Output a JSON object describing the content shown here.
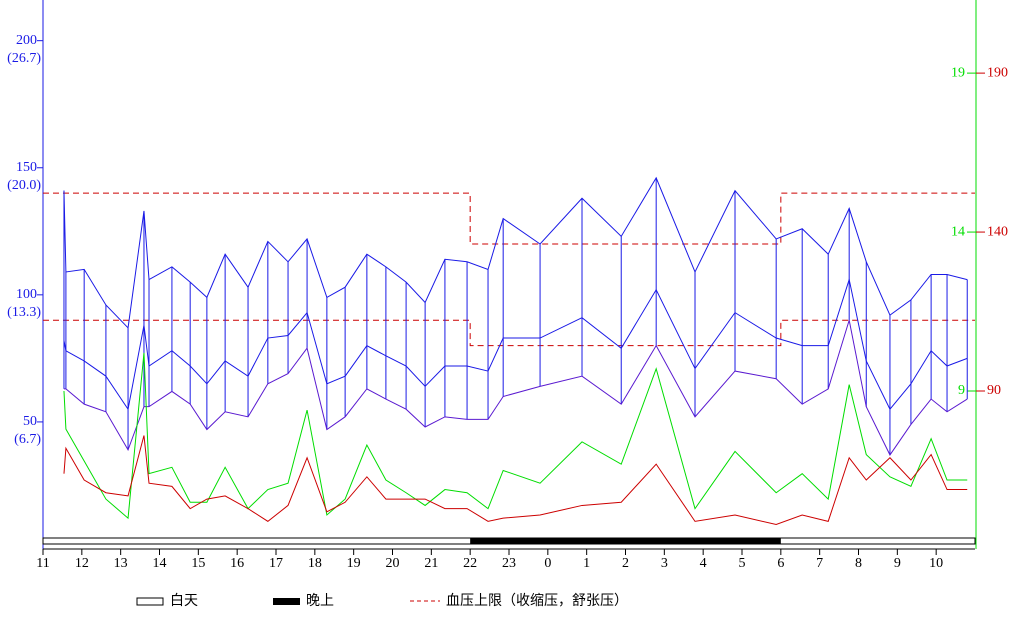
{
  "chart_data": {
    "type": "bp",
    "xlim": [
      0,
      24
    ],
    "xticks": [
      {
        "value": 0,
        "label": "11"
      },
      {
        "value": 1,
        "label": "12"
      },
      {
        "value": 2,
        "label": "13"
      },
      {
        "value": 3,
        "label": "14"
      },
      {
        "value": 4,
        "label": "15"
      },
      {
        "value": 5,
        "label": "16"
      },
      {
        "value": 6,
        "label": "17"
      },
      {
        "value": 7,
        "label": "18"
      },
      {
        "value": 8,
        "label": "19"
      },
      {
        "value": 9,
        "label": "20"
      },
      {
        "value": 10,
        "label": "21"
      },
      {
        "value": 11,
        "label": "22"
      },
      {
        "value": 12,
        "label": "23"
      },
      {
        "value": 13,
        "label": "0"
      },
      {
        "value": 14,
        "label": "1"
      },
      {
        "value": 15,
        "label": "2"
      },
      {
        "value": 16,
        "label": "3"
      },
      {
        "value": 17,
        "label": "4"
      },
      {
        "value": 18,
        "label": "5"
      },
      {
        "value": 19,
        "label": "6"
      },
      {
        "value": 20,
        "label": "7"
      },
      {
        "value": 21,
        "label": "8"
      },
      {
        "value": 22,
        "label": "9"
      },
      {
        "value": 23,
        "label": "10"
      }
    ],
    "ylim": [
      0,
      216
    ],
    "yticks": [
      50,
      100,
      150,
      200
    ],
    "ytick_kpa_labels": [
      "(6.7)",
      "(13.3)",
      "(20.0)",
      "(26.7)"
    ],
    "y2lim": [
      40.3,
      213
    ],
    "y2ticks": [
      90,
      140,
      190
    ],
    "y2color": "#cc0000",
    "y3lim": [
      4.03,
      21.3
    ],
    "y3ticks": [
      9,
      14,
      19
    ],
    "y3color": "#00dd00",
    "x": [
      0.54,
      0.59,
      1.06,
      1.62,
      2.19,
      2.6,
      2.73,
      3.32,
      3.79,
      4.22,
      4.69,
      5.28,
      5.79,
      6.31,
      6.8,
      7.31,
      7.78,
      8.34,
      8.83,
      9.35,
      9.84,
      10.35,
      10.92,
      11.46,
      11.85,
      12.8,
      13.88,
      14.89,
      15.79,
      16.79,
      17.82,
      18.88,
      19.55,
      20.22,
      20.76,
      21.2,
      21.81,
      22.35,
      22.87,
      23.28,
      23.8
    ],
    "series": [
      {
        "color": "#1a1ae6",
        "values": [
          141,
          109,
          110,
          96,
          87,
          133,
          106,
          111,
          105,
          99,
          116,
          103,
          121,
          113,
          122,
          99,
          103,
          116,
          111,
          105,
          97,
          114,
          113,
          110,
          130,
          120,
          138,
          123,
          146,
          109,
          141,
          122,
          126,
          116,
          134,
          113,
          92,
          98,
          108,
          108,
          106
        ]
      },
      {
        "color": "#1a1ae6",
        "values": [
          82,
          78,
          74,
          68,
          55,
          88,
          72,
          78,
          72,
          65,
          74,
          68,
          83,
          84,
          93,
          65,
          68,
          80,
          76,
          72,
          64,
          72,
          72,
          70,
          83,
          83,
          91,
          79,
          102,
          71,
          93,
          83,
          80,
          80,
          106,
          74,
          55,
          65,
          78,
          72,
          75
        ]
      },
      {
        "color": "#5a1ad0",
        "values": [
          63,
          63,
          57,
          54,
          39,
          56,
          56,
          62,
          57,
          47,
          54,
          52,
          65,
          69,
          79,
          47,
          52,
          63,
          59,
          55,
          48,
          52,
          51,
          51,
          60,
          64,
          68,
          57,
          80,
          52,
          70,
          67,
          57,
          63,
          90,
          56,
          37,
          49,
          59,
          54,
          59
        ]
      },
      {
        "color": "#00dd00",
        "axis": "y3",
        "values": [
          9.0,
          7.8,
          6.8,
          5.6,
          5.0,
          10.2,
          6.4,
          6.6,
          5.5,
          5.5,
          6.6,
          5.3,
          5.9,
          6.1,
          8.4,
          5.1,
          5.6,
          7.3,
          6.2,
          5.8,
          5.4,
          5.9,
          5.8,
          5.3,
          6.5,
          6.1,
          7.4,
          6.7,
          9.7,
          5.3,
          7.1,
          5.8,
          6.4,
          5.6,
          9.2,
          7.0,
          6.3,
          6.0,
          7.5,
          6.2,
          6.2
        ]
      },
      {
        "color": "#cc0000",
        "axis": "y2",
        "values": [
          64,
          72,
          62,
          58,
          57,
          76,
          61,
          60,
          53,
          56,
          57,
          53,
          49,
          54,
          69,
          52,
          55,
          63,
          56,
          56,
          56,
          53,
          53,
          49,
          50,
          51,
          54,
          55,
          67,
          49,
          51,
          48,
          51,
          49,
          69,
          62,
          69,
          62,
          70,
          59,
          59
        ]
      }
    ],
    "limits": {
      "day": [
        140,
        90
      ],
      "night": [
        120,
        80
      ],
      "color": "#cc0000"
    },
    "night": [
      11,
      19
    ],
    "legend": [
      "白天",
      "晚上",
      "血压上限（收缩压，舒张压）"
    ]
  }
}
